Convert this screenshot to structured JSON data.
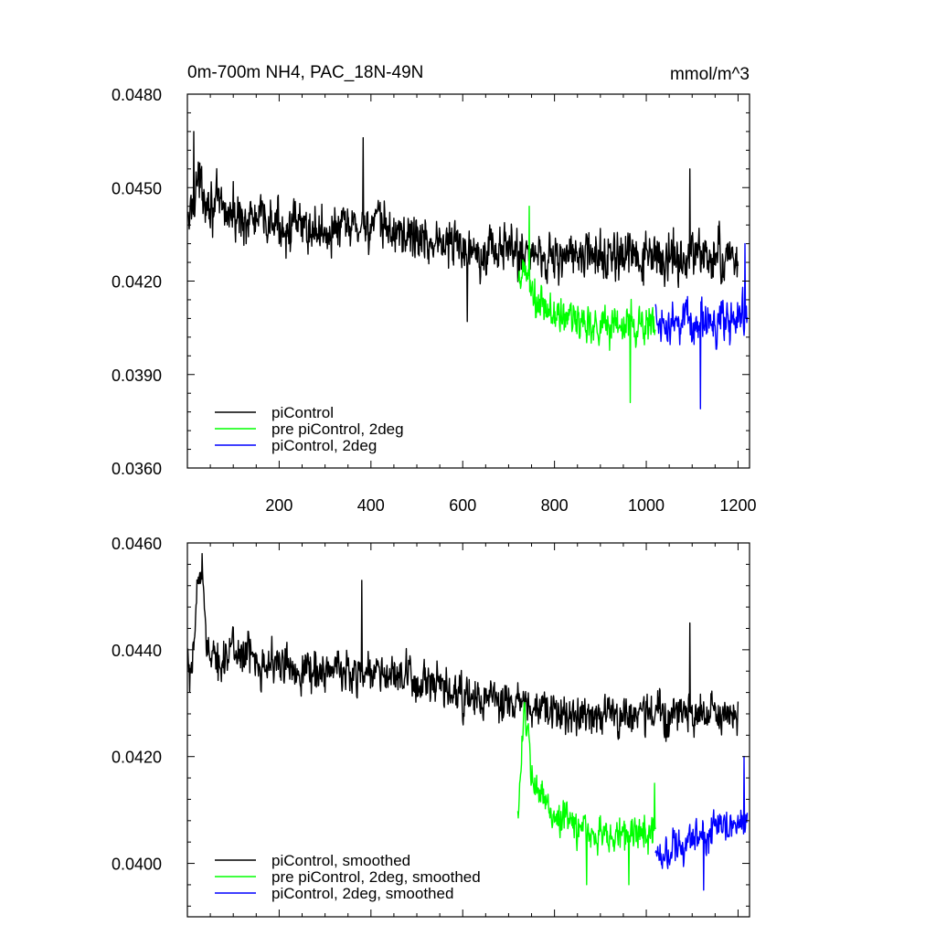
{
  "figure": {
    "title_left": "0m-700m NH4, PAC_18N-49N",
    "title_right": "mmol/m^3"
  },
  "colors": {
    "piControl": "#000000",
    "pre_2deg": "#00ff00",
    "pi_2deg": "#0000ff"
  },
  "chart_data": [
    {
      "type": "line",
      "xlim": [
        0,
        1225
      ],
      "ylim": [
        0.036,
        0.048
      ],
      "x_ticks": [
        200,
        400,
        600,
        800,
        1000,
        1200
      ],
      "y_ticks": [
        0.036,
        0.039,
        0.042,
        0.045,
        0.048
      ],
      "y_tick_labels": [
        "0.0360",
        "0.0390",
        "0.0420",
        "0.0450",
        "0.0480"
      ],
      "legend": [
        "piControl",
        "pre piControl, 2deg",
        "piControl, 2deg"
      ],
      "legend_position": "bottom-left",
      "series": [
        {
          "name": "piControl",
          "color": "#000000",
          "x_range": [
            1,
            1200
          ],
          "anchors": [
            [
              1,
              0.0437
            ],
            [
              20,
              0.0452
            ],
            [
              60,
              0.0444
            ],
            [
              100,
              0.0441
            ],
            [
              200,
              0.0438
            ],
            [
              300,
              0.0436
            ],
            [
              400,
              0.0438
            ],
            [
              500,
              0.0434
            ],
            [
              600,
              0.0431
            ],
            [
              700,
              0.043
            ],
            [
              800,
              0.0428
            ],
            [
              900,
              0.0428
            ],
            [
              1000,
              0.0427
            ],
            [
              1100,
              0.0428
            ],
            [
              1200,
              0.0427
            ]
          ],
          "noise": 0.0007,
          "spikes": [
            [
              14,
              0.0468
            ],
            [
              383,
              0.0466
            ],
            [
              610,
              0.0407
            ],
            [
              1095,
              0.0456
            ]
          ]
        },
        {
          "name": "pre piControl, 2deg",
          "color": "#00ff00",
          "x_range": [
            720,
            1020
          ],
          "anchors": [
            [
              720,
              0.0416
            ],
            [
              735,
              0.0424
            ],
            [
              760,
              0.0412
            ],
            [
              800,
              0.0409
            ],
            [
              900,
              0.0406
            ],
            [
              1020,
              0.0406
            ]
          ],
          "noise": 0.0006,
          "spikes": [
            [
              745,
              0.0444
            ],
            [
              965,
              0.0381
            ]
          ]
        },
        {
          "name": "piControl, 2deg",
          "color": "#0000ff",
          "x_range": [
            1020,
            1220
          ],
          "anchors": [
            [
              1020,
              0.0408
            ],
            [
              1100,
              0.0406
            ],
            [
              1200,
              0.0408
            ],
            [
              1220,
              0.041
            ]
          ],
          "noise": 0.0006,
          "spikes": [
            [
              1118,
              0.0379
            ],
            [
              1215,
              0.0432
            ]
          ]
        }
      ]
    },
    {
      "type": "line",
      "xlim": [
        0,
        1225
      ],
      "ylim": [
        0.039,
        0.046
      ],
      "y_ticks": [
        0.04,
        0.042,
        0.044,
        0.046
      ],
      "y_tick_labels": [
        "0.0400",
        "0.0420",
        "0.0440",
        "0.0460"
      ],
      "legend": [
        "piControl, smoothed",
        "pre piControl, 2deg, smoothed",
        "piControl, 2deg, smoothed"
      ],
      "legend_position": "bottom-left",
      "series": [
        {
          "name": "piControl, smoothed",
          "color": "#000000",
          "x_range": [
            1,
            1200
          ],
          "anchors": [
            [
              1,
              0.0437
            ],
            [
              8,
              0.0432
            ],
            [
              20,
              0.045
            ],
            [
              30,
              0.0455
            ],
            [
              50,
              0.0437
            ],
            [
              100,
              0.044
            ],
            [
              200,
              0.0437
            ],
            [
              300,
              0.0436
            ],
            [
              400,
              0.0436
            ],
            [
              500,
              0.0434
            ],
            [
              600,
              0.0431
            ],
            [
              700,
              0.043
            ],
            [
              800,
              0.0428
            ],
            [
              900,
              0.0428
            ],
            [
              1000,
              0.0428
            ],
            [
              1100,
              0.0428
            ],
            [
              1200,
              0.0427
            ]
          ],
          "noise": 0.00035,
          "spikes": [
            [
              32,
              0.0458
            ],
            [
              380,
              0.0453
            ],
            [
              1095,
              0.0445
            ],
            [
              1188,
              0.0426
            ]
          ]
        },
        {
          "name": "pre piControl, 2deg, smoothed",
          "color": "#00ff00",
          "x_range": [
            720,
            1020
          ],
          "anchors": [
            [
              720,
              0.041
            ],
            [
              735,
              0.043
            ],
            [
              750,
              0.0415
            ],
            [
              800,
              0.0409
            ],
            [
              900,
              0.0405
            ],
            [
              1020,
              0.0406
            ]
          ],
          "noise": 0.0003,
          "spikes": [
            [
              870,
              0.0396
            ],
            [
              962,
              0.0396
            ],
            [
              1018,
              0.0415
            ]
          ]
        },
        {
          "name": "piControl, 2deg, smoothed",
          "color": "#0000ff",
          "x_range": [
            1020,
            1220
          ],
          "anchors": [
            [
              1020,
              0.0402
            ],
            [
              1100,
              0.0404
            ],
            [
              1200,
              0.0408
            ],
            [
              1220,
              0.0408
            ]
          ],
          "noise": 0.0003,
          "spikes": [
            [
              1125,
              0.0395
            ],
            [
              1213,
              0.042
            ]
          ]
        }
      ]
    }
  ]
}
